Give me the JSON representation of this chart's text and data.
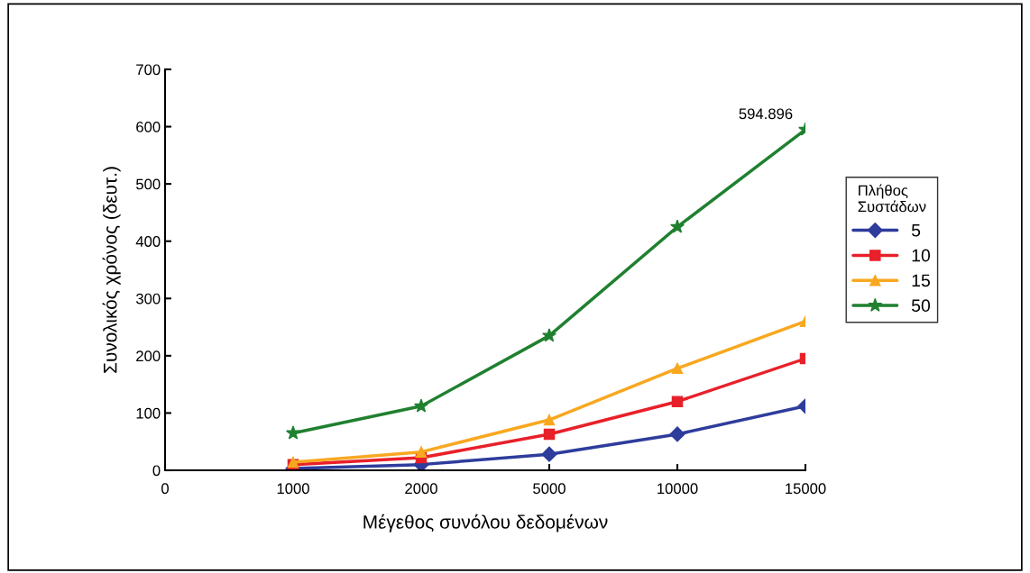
{
  "chart_data": {
    "type": "line",
    "xlabel": "Μέγεθος συνόλου δεδομένων",
    "ylabel": "Συνολικός χρόνος (δευτ.)",
    "legend_title": "Πλήθος\nΣυστάδων",
    "categories": [
      "0",
      "1000",
      "2000",
      "5000",
      "10000",
      "15000"
    ],
    "series": [
      {
        "name": "5",
        "color": "#2e3c9c",
        "marker": "diamond",
        "values": [
          null,
          3,
          10,
          28,
          63,
          112
        ]
      },
      {
        "name": "10",
        "color": "#e8202a",
        "marker": "square",
        "values": [
          null,
          10,
          22,
          63,
          120,
          195
        ]
      },
      {
        "name": "15",
        "color": "#f8a820",
        "marker": "triangle",
        "values": [
          null,
          14,
          32,
          88,
          178,
          260
        ]
      },
      {
        "name": "50",
        "color": "#208030",
        "marker": "star",
        "values": [
          null,
          65,
          112,
          235,
          425,
          594.896
        ]
      }
    ],
    "ylim": [
      0,
      700
    ],
    "yticks": [
      0,
      100,
      200,
      300,
      400,
      500,
      600,
      700
    ],
    "annotations": [
      {
        "text": "594.896",
        "x": "15000",
        "y": 594.896
      }
    ],
    "legend": "right",
    "grid": false,
    "line_style": "solid"
  }
}
